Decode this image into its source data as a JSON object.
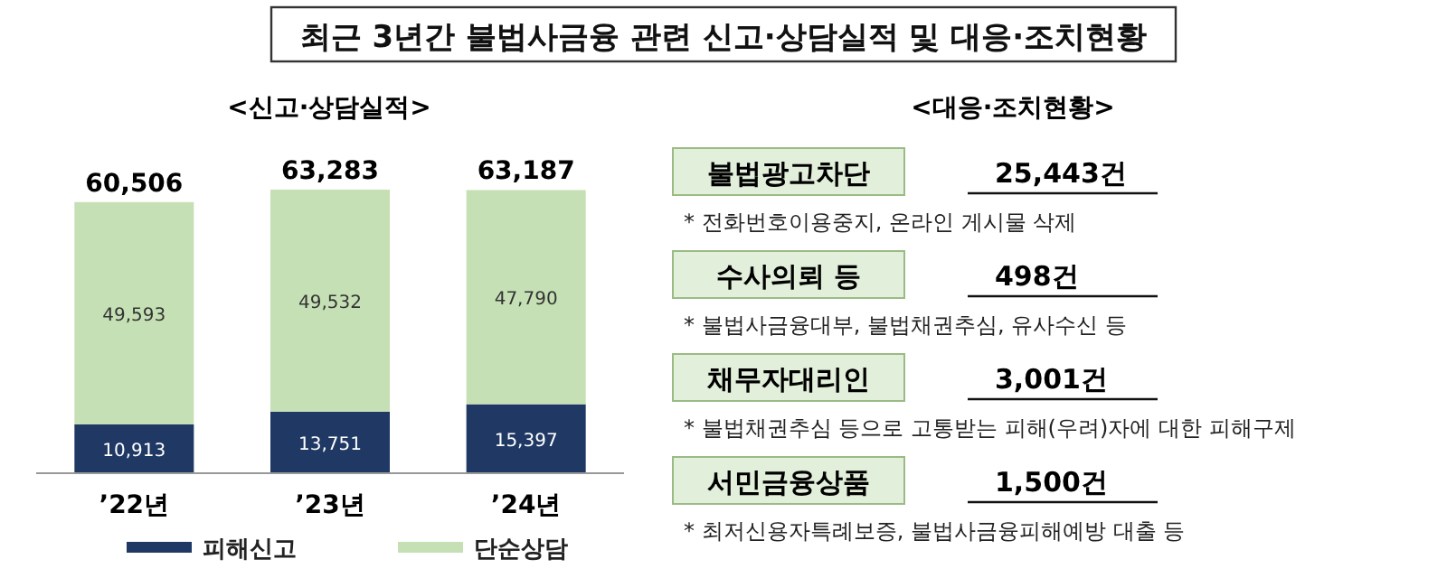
{
  "chart_data": [
    {
      "type": "bar",
      "title": "최근 3년간 불법사금융 관련 신고·상담실적 및 대응·조치현황",
      "subtitle": "<신고·상담실적>",
      "categories": [
        "’22년",
        "’23년",
        "’24년"
      ],
      "stacked": true,
      "totals": [
        "60,506",
        "63,283",
        "63,187"
      ],
      "legend": "bottom",
      "series": [
        {
          "name": "피해신고",
          "color": "#1f3864",
          "values": [
            10913,
            13751,
            15397
          ],
          "value_labels": [
            "10,913",
            "13,751",
            "15,397"
          ]
        },
        {
          "name": "단순상담",
          "color": "#c5e0b4",
          "values": [
            49593,
            49532,
            47790
          ],
          "value_labels": [
            "49,593",
            "49,532",
            "47,790"
          ]
        }
      ]
    },
    {
      "type": "other",
      "title": "<대응·조치현황>",
      "annotations": [
        "불법광고차단",
        "25,443건",
        "* 전화번호이용중지, 온라인 게시물 삭제",
        "수사의뢰 등",
        "498건",
        "* 불법사금융대부, 불법채권추심, 유사수신 등",
        "채무자대리인",
        "3,001건",
        "* 불법채권추심 등으로 고통받는 피해(우려)자에 대한 피해구제",
        "서민금융상품",
        "1,500건",
        "* 최저신용자특례보증, 불법사금융피해예방 대출 등"
      ]
    }
  ]
}
